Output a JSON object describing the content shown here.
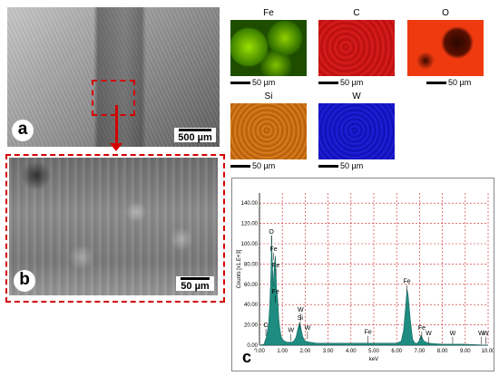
{
  "panels": {
    "a": {
      "label": "a",
      "scale": "500 µm"
    },
    "b": {
      "label": "b",
      "scale": "50 µm"
    },
    "c": {
      "label": "c"
    }
  },
  "maps": [
    {
      "element": "Fe",
      "scale": "50 µm",
      "color": "#5fb000"
    },
    {
      "element": "C",
      "scale": "50 µm",
      "color": "#d21414"
    },
    {
      "element": "O",
      "scale": "50 µm",
      "color": "#ef3a10"
    },
    {
      "element": "Si",
      "scale": "50 µm",
      "color": "#c76a12"
    },
    {
      "element": "W",
      "scale": "50 µm",
      "color": "#1a1ad0"
    }
  ],
  "chart_data": {
    "type": "line",
    "xlabel": "keV",
    "ylabel": "Counts [x1.E+3]",
    "xlim": [
      0,
      10
    ],
    "ylim": [
      0,
      150
    ],
    "xticks": [
      "0.00",
      "1.00",
      "2.00",
      "3.00",
      "4.00",
      "5.00",
      "6.00",
      "7.00",
      "8.00",
      "9.00",
      "10.00"
    ],
    "yticks": [
      "0.00",
      "20.00",
      "40.00",
      "60.00",
      "80.00",
      "100.00",
      "120.00",
      "140.00"
    ],
    "grid": true,
    "fill_color": "#1e8c80",
    "x": [
      0.0,
      0.2,
      0.25,
      0.3,
      0.4,
      0.45,
      0.5,
      0.53,
      0.55,
      0.6,
      0.65,
      0.7,
      0.72,
      0.75,
      0.8,
      0.85,
      0.9,
      0.95,
      1.0,
      1.1,
      1.2,
      1.3,
      1.4,
      1.5,
      1.6,
      1.7,
      1.75,
      1.8,
      1.9,
      2.0,
      2.2,
      2.5,
      3.0,
      4.0,
      5.0,
      6.0,
      6.2,
      6.3,
      6.4,
      6.45,
      6.5,
      6.6,
      6.7,
      6.8,
      6.9,
      7.0,
      7.06,
      7.1,
      7.2,
      7.4,
      8.0,
      9.0,
      10.0
    ],
    "y": [
      0,
      1,
      5,
      8,
      22,
      40,
      70,
      108,
      90,
      58,
      80,
      88,
      75,
      55,
      45,
      25,
      15,
      9,
      6,
      4,
      3,
      3,
      3,
      4,
      8,
      18,
      22,
      18,
      8,
      4,
      3,
      2,
      2,
      2,
      2,
      2,
      4,
      15,
      40,
      55,
      50,
      25,
      6,
      2,
      2,
      5,
      10,
      8,
      4,
      2,
      1,
      1,
      0
    ],
    "peaks": [
      {
        "label": "C",
        "x": 0.28,
        "y": 18
      },
      {
        "label": "O",
        "x": 0.52,
        "y": 110
      },
      {
        "label": "Fe",
        "x": 0.62,
        "y": 93
      },
      {
        "label": "Fe",
        "x": 0.72,
        "y": 77
      },
      {
        "label": "Fe",
        "x": 0.7,
        "y": 51
      },
      {
        "label": "W",
        "x": 1.38,
        "y": 13
      },
      {
        "label": "W",
        "x": 1.8,
        "y": 33
      },
      {
        "label": "Si",
        "x": 1.78,
        "y": 25
      },
      {
        "label": "W",
        "x": 2.1,
        "y": 15
      },
      {
        "label": "Fe",
        "x": 4.75,
        "y": 11
      },
      {
        "label": "Fe",
        "x": 6.45,
        "y": 61
      },
      {
        "label": "Fe",
        "x": 7.1,
        "y": 15
      },
      {
        "label": "W",
        "x": 7.4,
        "y": 10
      },
      {
        "label": "W",
        "x": 8.45,
        "y": 10
      },
      {
        "label": "W",
        "x": 9.7,
        "y": 10
      },
      {
        "label": "W",
        "x": 9.9,
        "y": 10
      }
    ]
  }
}
